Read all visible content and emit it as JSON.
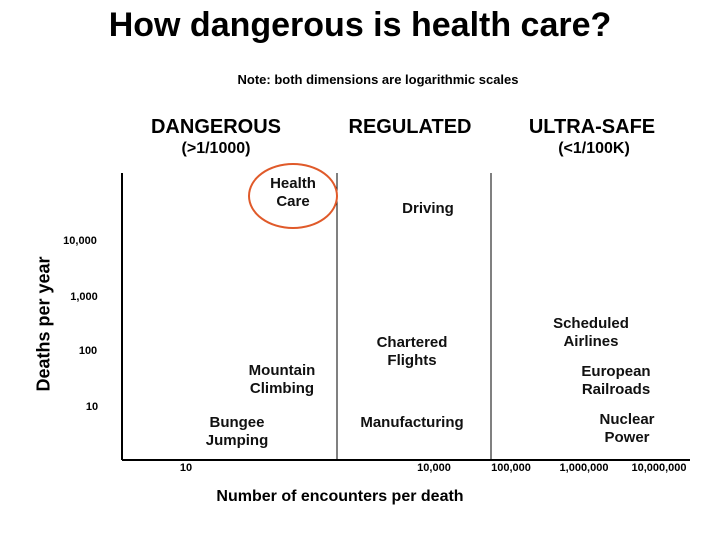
{
  "title": "How dangerous is health care?",
  "note": "Note: both dimensions are logarithmic scales",
  "zones": [
    {
      "label": "DANGEROUS",
      "sub": "(>1/1000)"
    },
    {
      "label": "REGULATED",
      "sub": ""
    },
    {
      "label": "ULTRA-SAFE",
      "sub": "(<1/100K)"
    }
  ],
  "colors": {
    "highlight": "#e05a2a"
  },
  "chart_data": {
    "type": "scatter",
    "title": "How dangerous is health care?",
    "xlabel": "Number of encounters per death",
    "ylabel": "Deaths per year",
    "x_scale": "log",
    "y_scale": "log",
    "x_ticks": [
      "10",
      "10,000",
      "100,000",
      "1,000,000",
      "10,000,000"
    ],
    "y_ticks": [
      "10,000",
      "1,000",
      "100",
      "10"
    ],
    "points": [
      {
        "label": "Health Care",
        "x": 30,
        "y": 80000,
        "highlighted": true
      },
      {
        "label": "Driving",
        "x": 2000,
        "y": 40000
      },
      {
        "label": "Mountain Climbing",
        "x": 12,
        "y": 50
      },
      {
        "label": "Bungee Jumping",
        "x": 8,
        "y": 4
      },
      {
        "label": "Chartered Flights",
        "x": 3000,
        "y": 80
      },
      {
        "label": "Manufacturing",
        "x": 5000,
        "y": 5
      },
      {
        "label": "Scheduled Airlines",
        "x": 900000,
        "y": 150
      },
      {
        "label": "European Railroads",
        "x": 1200000,
        "y": 40
      },
      {
        "label": "Nuclear Power",
        "x": 1500000,
        "y": 5
      }
    ],
    "grid": false
  }
}
